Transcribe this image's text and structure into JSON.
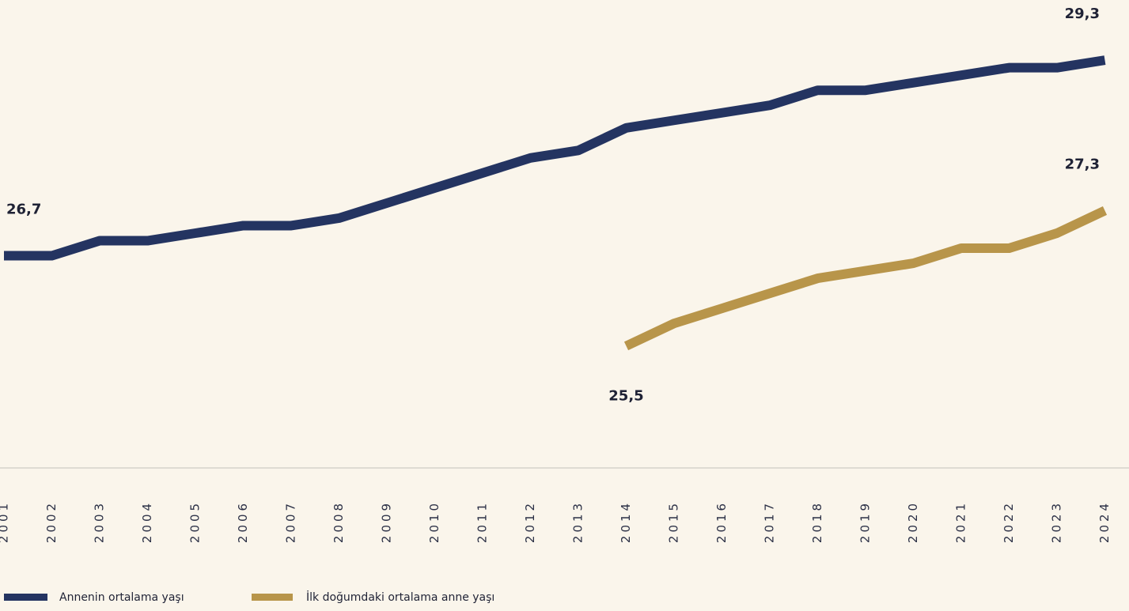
{
  "chart_data": {
    "type": "line",
    "categories": [
      "2001",
      "2002",
      "2003",
      "2004",
      "2005",
      "2006",
      "2007",
      "2008",
      "2009",
      "2010",
      "2011",
      "2012",
      "2013",
      "2014",
      "2015",
      "2016",
      "2017",
      "2018",
      "2019",
      "2020",
      "2021",
      "2022",
      "2023",
      "2024"
    ],
    "series": [
      {
        "name": "Annenin ortalama yaşı",
        "color": "#243461",
        "values": [
          26.7,
          26.7,
          26.9,
          26.9,
          27.0,
          27.1,
          27.1,
          27.2,
          27.4,
          27.6,
          27.8,
          28.0,
          28.1,
          28.4,
          28.5,
          28.6,
          28.7,
          28.9,
          28.9,
          29.0,
          29.1,
          29.2,
          29.2,
          29.3
        ],
        "value_labels": [
          "26,7",
          null,
          null,
          null,
          null,
          null,
          null,
          null,
          null,
          null,
          null,
          null,
          null,
          null,
          null,
          null,
          null,
          null,
          null,
          null,
          null,
          null,
          null,
          "29,3"
        ]
      },
      {
        "name": "İlk doğumdaki ortalama anne yaşı",
        "color": "#b8954a",
        "values": [
          null,
          null,
          null,
          null,
          null,
          null,
          null,
          null,
          null,
          null,
          null,
          null,
          null,
          25.5,
          25.8,
          26.0,
          26.2,
          26.4,
          26.5,
          26.6,
          26.8,
          26.8,
          27.0,
          27.3
        ],
        "value_labels": [
          null,
          null,
          null,
          null,
          null,
          null,
          null,
          null,
          null,
          null,
          null,
          null,
          null,
          "25,5",
          null,
          null,
          null,
          null,
          null,
          null,
          null,
          null,
          null,
          "27,3"
        ]
      }
    ],
    "ylim": [
      23.9,
      30.1
    ]
  }
}
